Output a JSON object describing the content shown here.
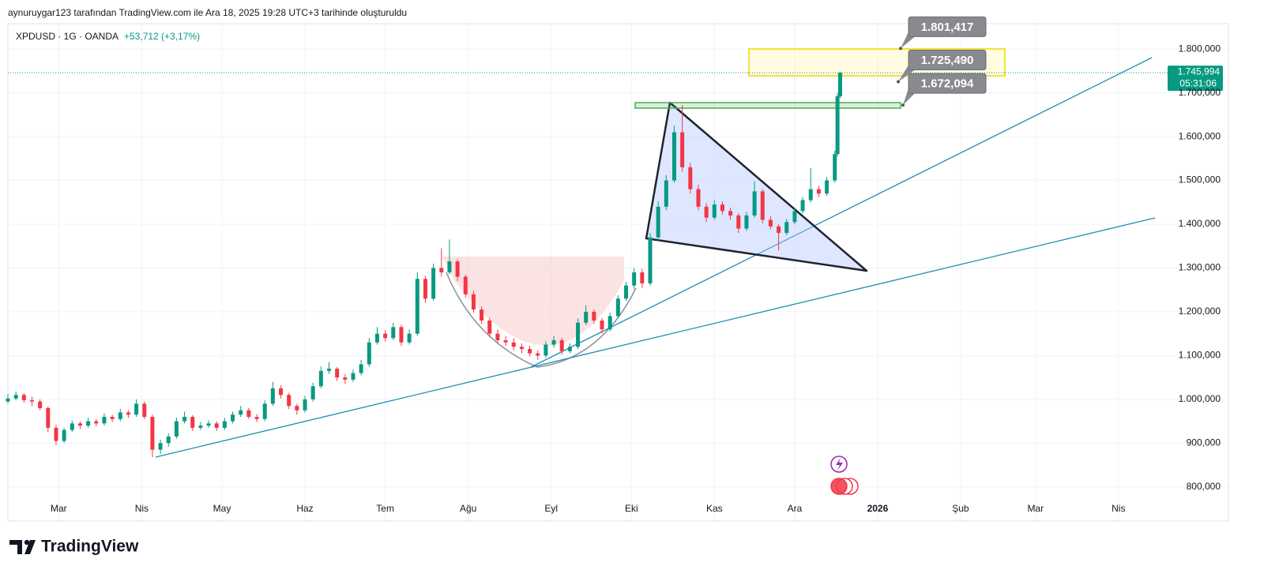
{
  "chart_data": {
    "type": "candlestick",
    "credit": "aynuruygar123 tarafından TradingView.com ile Ara 18, 2025 19:28 UTC+3 tarihinde oluşturuldu",
    "title": "XPDUSD · 1G · OANDA",
    "change_label": "+53,712 (+3,17%)",
    "brand": "TradingView",
    "up_color": "#089981",
    "down_color": "#f23645",
    "grid": true,
    "xlim": [
      41,
      472
    ],
    "xticks": [
      {
        "value": 60,
        "label": "Mar"
      },
      {
        "value": 91,
        "label": "Nis"
      },
      {
        "value": 121,
        "label": "May"
      },
      {
        "value": 152,
        "label": "Haz"
      },
      {
        "value": 182,
        "label": "Tem"
      },
      {
        "value": 213,
        "label": "Ağu"
      },
      {
        "value": 244,
        "label": "Eyl"
      },
      {
        "value": 274,
        "label": "Eki"
      },
      {
        "value": 305,
        "label": "Kas"
      },
      {
        "value": 335,
        "label": "Ara"
      },
      {
        "value": 366,
        "label": "2026"
      },
      {
        "value": 397,
        "label": "Şub"
      },
      {
        "value": 425,
        "label": "Mar"
      },
      {
        "value": 456,
        "label": "Nis"
      }
    ],
    "ylim": [
      722,
      1858
    ],
    "yticks": [
      {
        "value": 800,
        "label": "800,000"
      },
      {
        "value": 900,
        "label": "900,000"
      },
      {
        "value": 1000,
        "label": "1.000,000"
      },
      {
        "value": 1100,
        "label": "1.100,000"
      },
      {
        "value": 1200,
        "label": "1.200,000"
      },
      {
        "value": 1300,
        "label": "1.300,000"
      },
      {
        "value": 1400,
        "label": "1.400,000"
      },
      {
        "value": 1500,
        "label": "1.500,000"
      },
      {
        "value": 1600,
        "label": "1.600,000"
      },
      {
        "value": 1700,
        "label": "1.700,000"
      },
      {
        "value": 1800,
        "label": "1.800,000"
      }
    ],
    "last_price": {
      "value": 1745.994,
      "label": "1.745,994"
    },
    "countdown": "05:31:06",
    "annotations": [
      {
        "value": 1801.417,
        "label": "1.801,417"
      },
      {
        "value": 1725.49,
        "label": "1.725,490"
      },
      {
        "value": 1672.094,
        "label": "1.672,094"
      }
    ],
    "candles": [
      [
        41,
        995,
        1012,
        990,
        1002
      ],
      [
        44,
        1002,
        1018,
        998,
        1010
      ],
      [
        47,
        1010,
        1014,
        992,
        998
      ],
      [
        50,
        998,
        1006,
        985,
        995
      ],
      [
        53,
        995,
        1000,
        975,
        980
      ],
      [
        56,
        980,
        984,
        925,
        935
      ],
      [
        59,
        935,
        942,
        895,
        905
      ],
      [
        62,
        905,
        935,
        900,
        930
      ],
      [
        65,
        930,
        952,
        925,
        945
      ],
      [
        68,
        945,
        950,
        932,
        940
      ],
      [
        71,
        940,
        958,
        935,
        950
      ],
      [
        74,
        950,
        955,
        938,
        945
      ],
      [
        77,
        945,
        968,
        940,
        960
      ],
      [
        80,
        960,
        965,
        948,
        955
      ],
      [
        83,
        955,
        978,
        950,
        970
      ],
      [
        86,
        970,
        975,
        958,
        965
      ],
      [
        89,
        965,
        1000,
        960,
        990
      ],
      [
        92,
        990,
        995,
        955,
        960
      ],
      [
        95,
        960,
        965,
        868,
        885
      ],
      [
        98,
        885,
        908,
        875,
        900
      ],
      [
        101,
        900,
        922,
        892,
        915
      ],
      [
        104,
        915,
        958,
        910,
        950
      ],
      [
        107,
        950,
        972,
        945,
        960
      ],
      [
        110,
        960,
        964,
        928,
        935
      ],
      [
        113,
        935,
        948,
        930,
        940
      ],
      [
        116,
        940,
        952,
        935,
        945
      ],
      [
        119,
        945,
        950,
        928,
        935
      ],
      [
        122,
        935,
        958,
        930,
        950
      ],
      [
        125,
        950,
        972,
        945,
        965
      ],
      [
        128,
        965,
        985,
        960,
        975
      ],
      [
        131,
        975,
        980,
        955,
        960
      ],
      [
        134,
        960,
        966,
        948,
        955
      ],
      [
        137,
        955,
        998,
        950,
        990
      ],
      [
        140,
        990,
        1040,
        985,
        1025
      ],
      [
        143,
        1025,
        1032,
        1002,
        1010
      ],
      [
        146,
        1010,
        1015,
        978,
        985
      ],
      [
        149,
        985,
        990,
        965,
        975
      ],
      [
        152,
        975,
        1008,
        970,
        1000
      ],
      [
        155,
        1000,
        1038,
        995,
        1030
      ],
      [
        158,
        1030,
        1075,
        1025,
        1065
      ],
      [
        161,
        1065,
        1085,
        1058,
        1070
      ],
      [
        164,
        1070,
        1074,
        1042,
        1050
      ],
      [
        167,
        1050,
        1058,
        1035,
        1045
      ],
      [
        170,
        1045,
        1068,
        1040,
        1060
      ],
      [
        173,
        1060,
        1090,
        1055,
        1080
      ],
      [
        176,
        1080,
        1140,
        1075,
        1130
      ],
      [
        179,
        1130,
        1165,
        1125,
        1150
      ],
      [
        182,
        1150,
        1158,
        1132,
        1140
      ],
      [
        185,
        1140,
        1175,
        1135,
        1165
      ],
      [
        188,
        1165,
        1170,
        1122,
        1130
      ],
      [
        191,
        1130,
        1160,
        1125,
        1150
      ],
      [
        194,
        1150,
        1290,
        1145,
        1275
      ],
      [
        197,
        1275,
        1282,
        1220,
        1230
      ],
      [
        200,
        1230,
        1310,
        1225,
        1300
      ],
      [
        203,
        1300,
        1345,
        1280,
        1290
      ],
      [
        206,
        1290,
        1365,
        1285,
        1315
      ],
      [
        209,
        1315,
        1320,
        1270,
        1280
      ],
      [
        212,
        1280,
        1285,
        1232,
        1240
      ],
      [
        215,
        1240,
        1248,
        1198,
        1205
      ],
      [
        218,
        1205,
        1212,
        1172,
        1180
      ],
      [
        221,
        1180,
        1186,
        1142,
        1150
      ],
      [
        224,
        1150,
        1160,
        1128,
        1135
      ],
      [
        227,
        1135,
        1145,
        1122,
        1130
      ],
      [
        230,
        1130,
        1140,
        1112,
        1120
      ],
      [
        233,
        1120,
        1128,
        1105,
        1115
      ],
      [
        236,
        1115,
        1122,
        1098,
        1105
      ],
      [
        239,
        1105,
        1112,
        1090,
        1100
      ],
      [
        242,
        1100,
        1132,
        1095,
        1125
      ],
      [
        245,
        1125,
        1145,
        1118,
        1135
      ],
      [
        248,
        1135,
        1140,
        1102,
        1110
      ],
      [
        251,
        1110,
        1128,
        1105,
        1120
      ],
      [
        254,
        1120,
        1185,
        1115,
        1175
      ],
      [
        257,
        1175,
        1215,
        1170,
        1200
      ],
      [
        260,
        1200,
        1205,
        1172,
        1180
      ],
      [
        263,
        1180,
        1186,
        1150,
        1160
      ],
      [
        266,
        1160,
        1198,
        1155,
        1190
      ],
      [
        269,
        1190,
        1238,
        1185,
        1230
      ],
      [
        272,
        1230,
        1268,
        1225,
        1260
      ],
      [
        275,
        1260,
        1300,
        1252,
        1290
      ],
      [
        278,
        1290,
        1298,
        1255,
        1265
      ],
      [
        281,
        1265,
        1380,
        1260,
        1370
      ],
      [
        284,
        1370,
        1452,
        1362,
        1440
      ],
      [
        287,
        1440,
        1512,
        1432,
        1500
      ],
      [
        290,
        1500,
        1625,
        1495,
        1610
      ],
      [
        293,
        1610,
        1672,
        1520,
        1530
      ],
      [
        296,
        1530,
        1540,
        1470,
        1480
      ],
      [
        299,
        1480,
        1490,
        1432,
        1440
      ],
      [
        302,
        1440,
        1448,
        1405,
        1415
      ],
      [
        305,
        1415,
        1455,
        1410,
        1445
      ],
      [
        308,
        1445,
        1452,
        1422,
        1430
      ],
      [
        311,
        1430,
        1438,
        1410,
        1420
      ],
      [
        314,
        1420,
        1425,
        1380,
        1390
      ],
      [
        317,
        1390,
        1428,
        1385,
        1420
      ],
      [
        320,
        1420,
        1498,
        1415,
        1475
      ],
      [
        323,
        1475,
        1480,
        1402,
        1410
      ],
      [
        326,
        1410,
        1418,
        1388,
        1395
      ],
      [
        329,
        1395,
        1400,
        1340,
        1380
      ],
      [
        332,
        1380,
        1412,
        1375,
        1405
      ],
      [
        335,
        1405,
        1438,
        1400,
        1430
      ],
      [
        338,
        1430,
        1462,
        1425,
        1455
      ],
      [
        341,
        1455,
        1528,
        1450,
        1480
      ],
      [
        344,
        1480,
        1488,
        1462,
        1470
      ],
      [
        347,
        1470,
        1508,
        1465,
        1500
      ],
      [
        350,
        1500,
        1568,
        1495,
        1560
      ],
      [
        351,
        1560,
        1700,
        1555,
        1692.282
      ],
      [
        352,
        1692.282,
        1748,
        1688,
        1745.994
      ]
    ]
  }
}
